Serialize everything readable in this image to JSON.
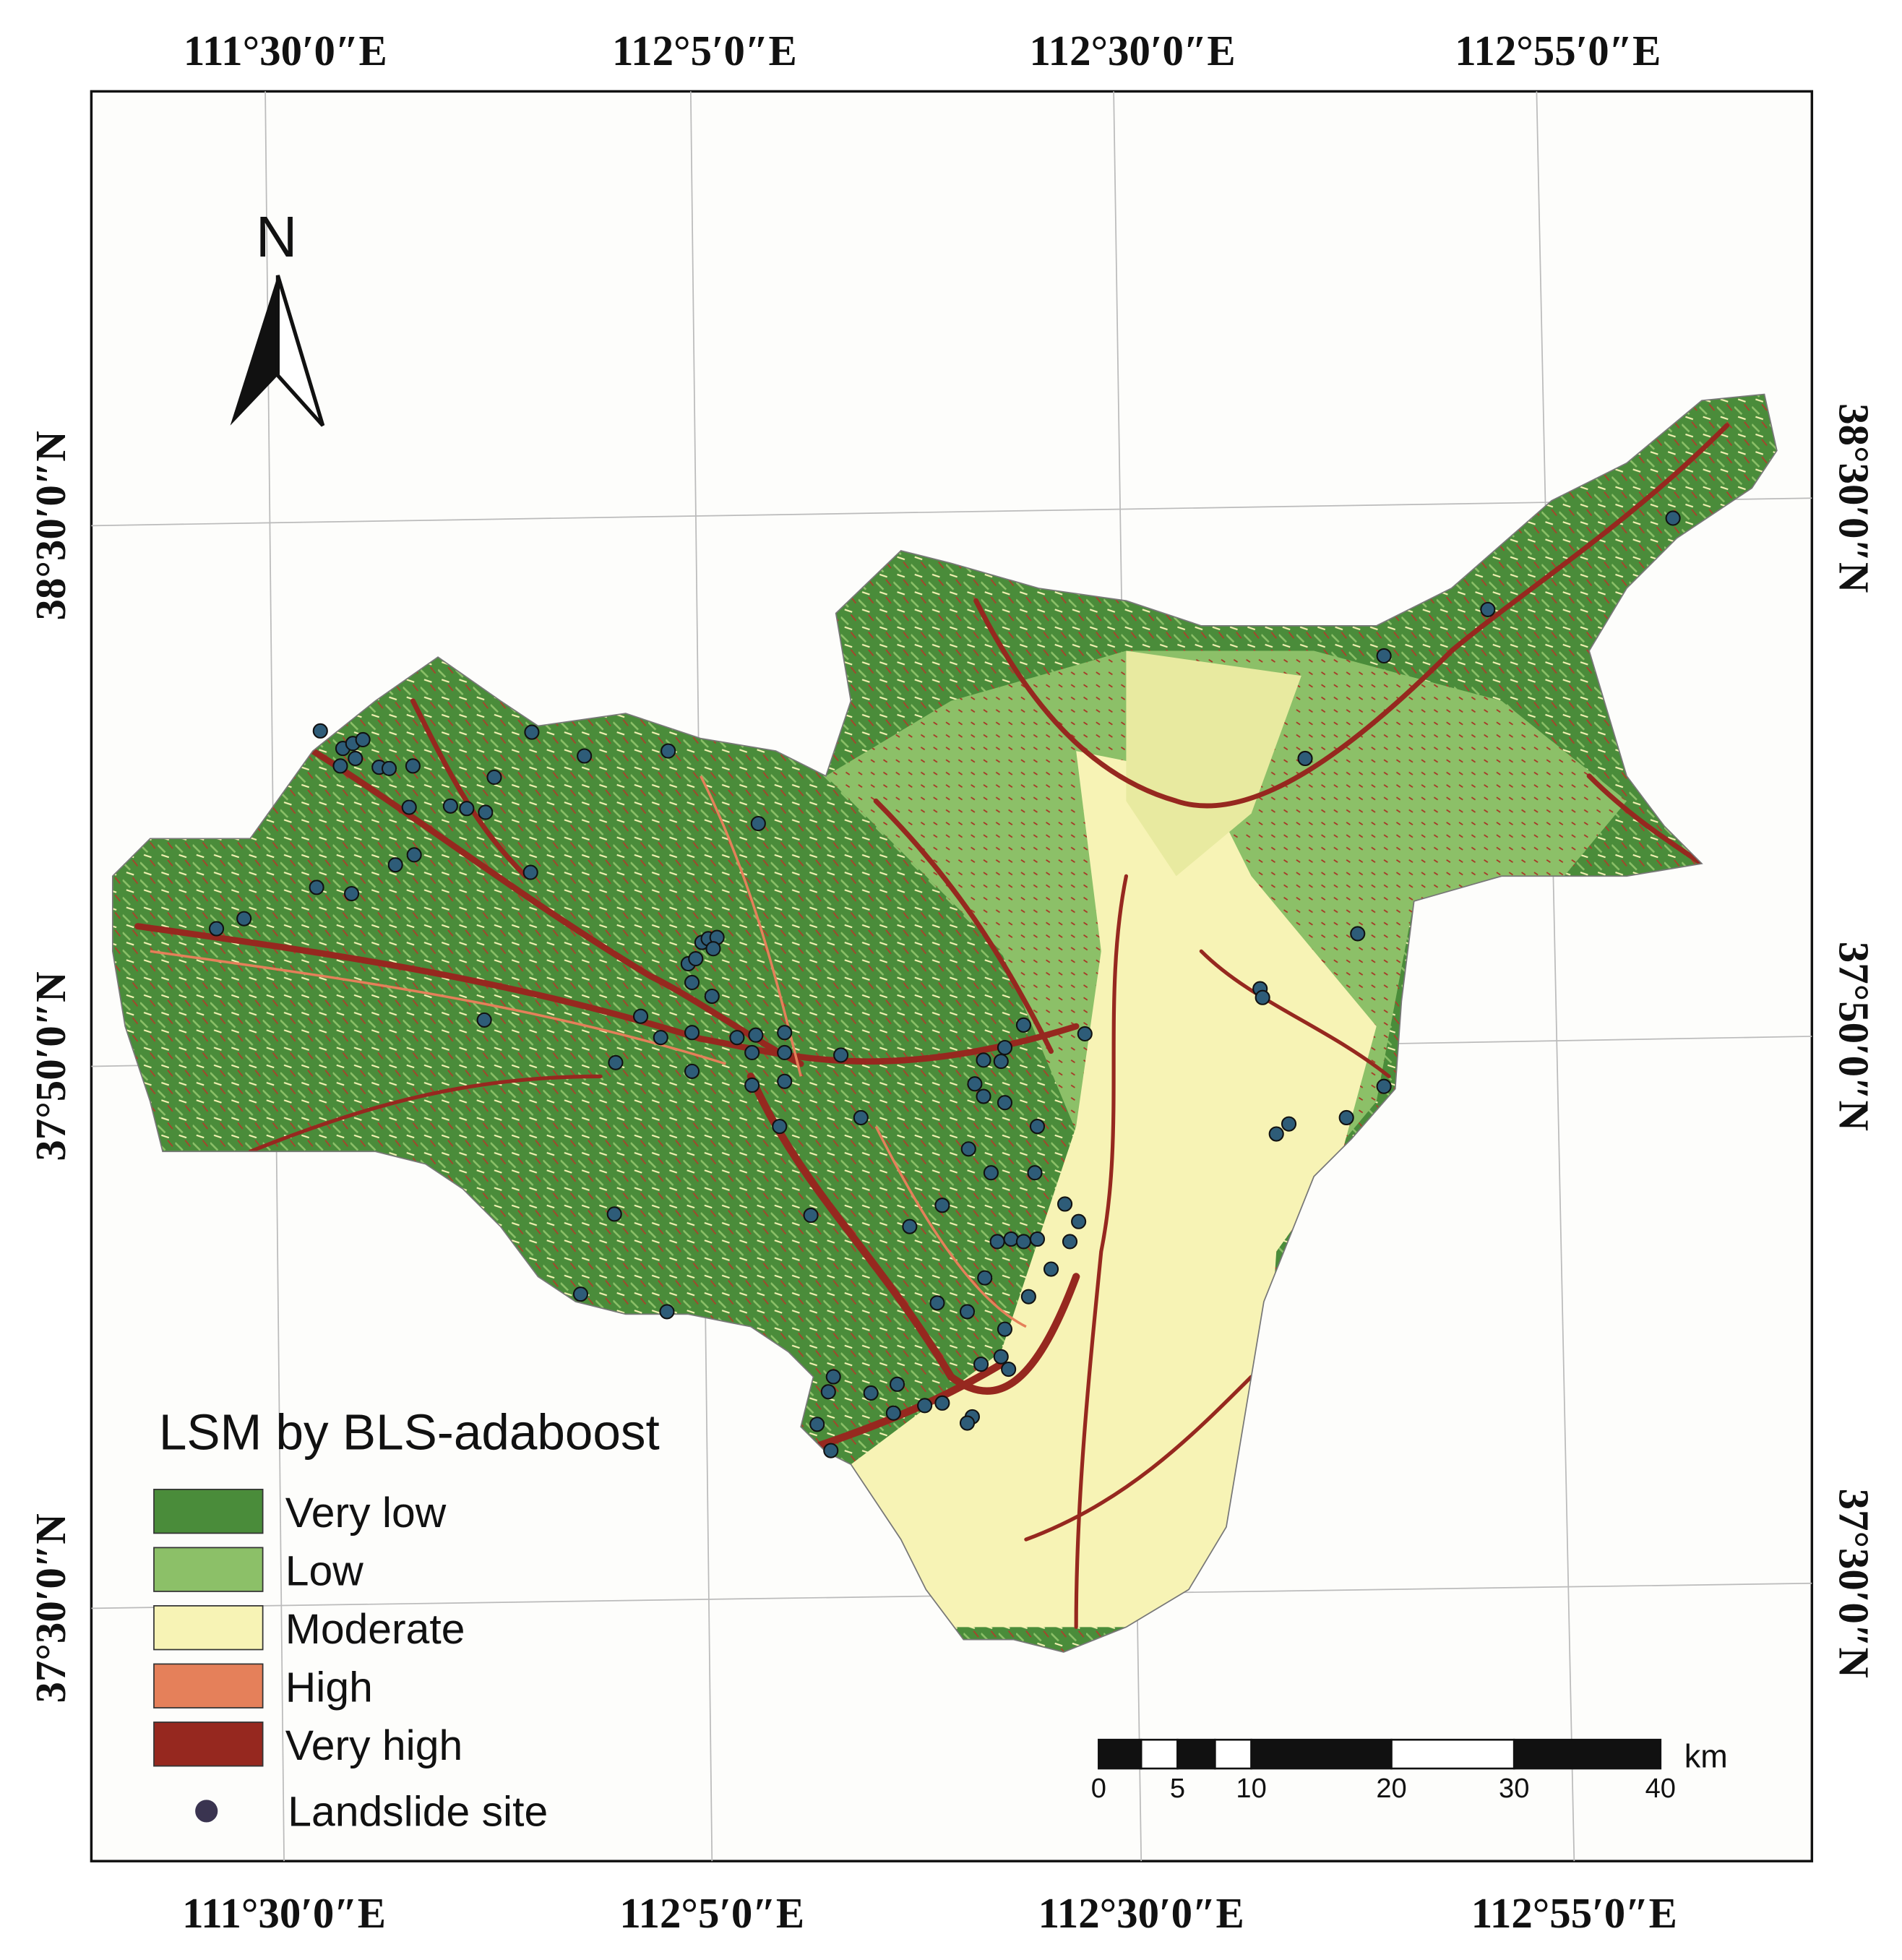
{
  "graticule": {
    "top": [
      "111°30′0″E",
      "112°5′0″E",
      "112°30′0″E",
      "112°55′0″E"
    ],
    "bottom": [
      "111°30′0″E",
      "112°5′0″E",
      "112°30′0″E",
      "112°55′0″E"
    ],
    "left": [
      "38°30′0″N",
      "37°50′0″N",
      "37°30′0″N"
    ],
    "right": [
      "38°30′0″N",
      "37°50′0″N",
      "37°30′0″N"
    ]
  },
  "north_arrow": {
    "label": "N"
  },
  "legend": {
    "title": "LSM by BLS-adaboost",
    "items": [
      {
        "label": "Very low",
        "color": "#4a8c3a"
      },
      {
        "label": "Low",
        "color": "#8cc068"
      },
      {
        "label": "Moderate",
        "color": "#f7f3b5"
      },
      {
        "label": "High",
        "color": "#e5805a"
      },
      {
        "label": "Very high",
        "color": "#96281f"
      }
    ],
    "point": {
      "label": "Landslide site",
      "color": "#2e5c78"
    }
  },
  "scale_bar": {
    "labels": [
      "0",
      "5",
      "10",
      "20",
      "30",
      "40"
    ],
    "unit": "km"
  }
}
